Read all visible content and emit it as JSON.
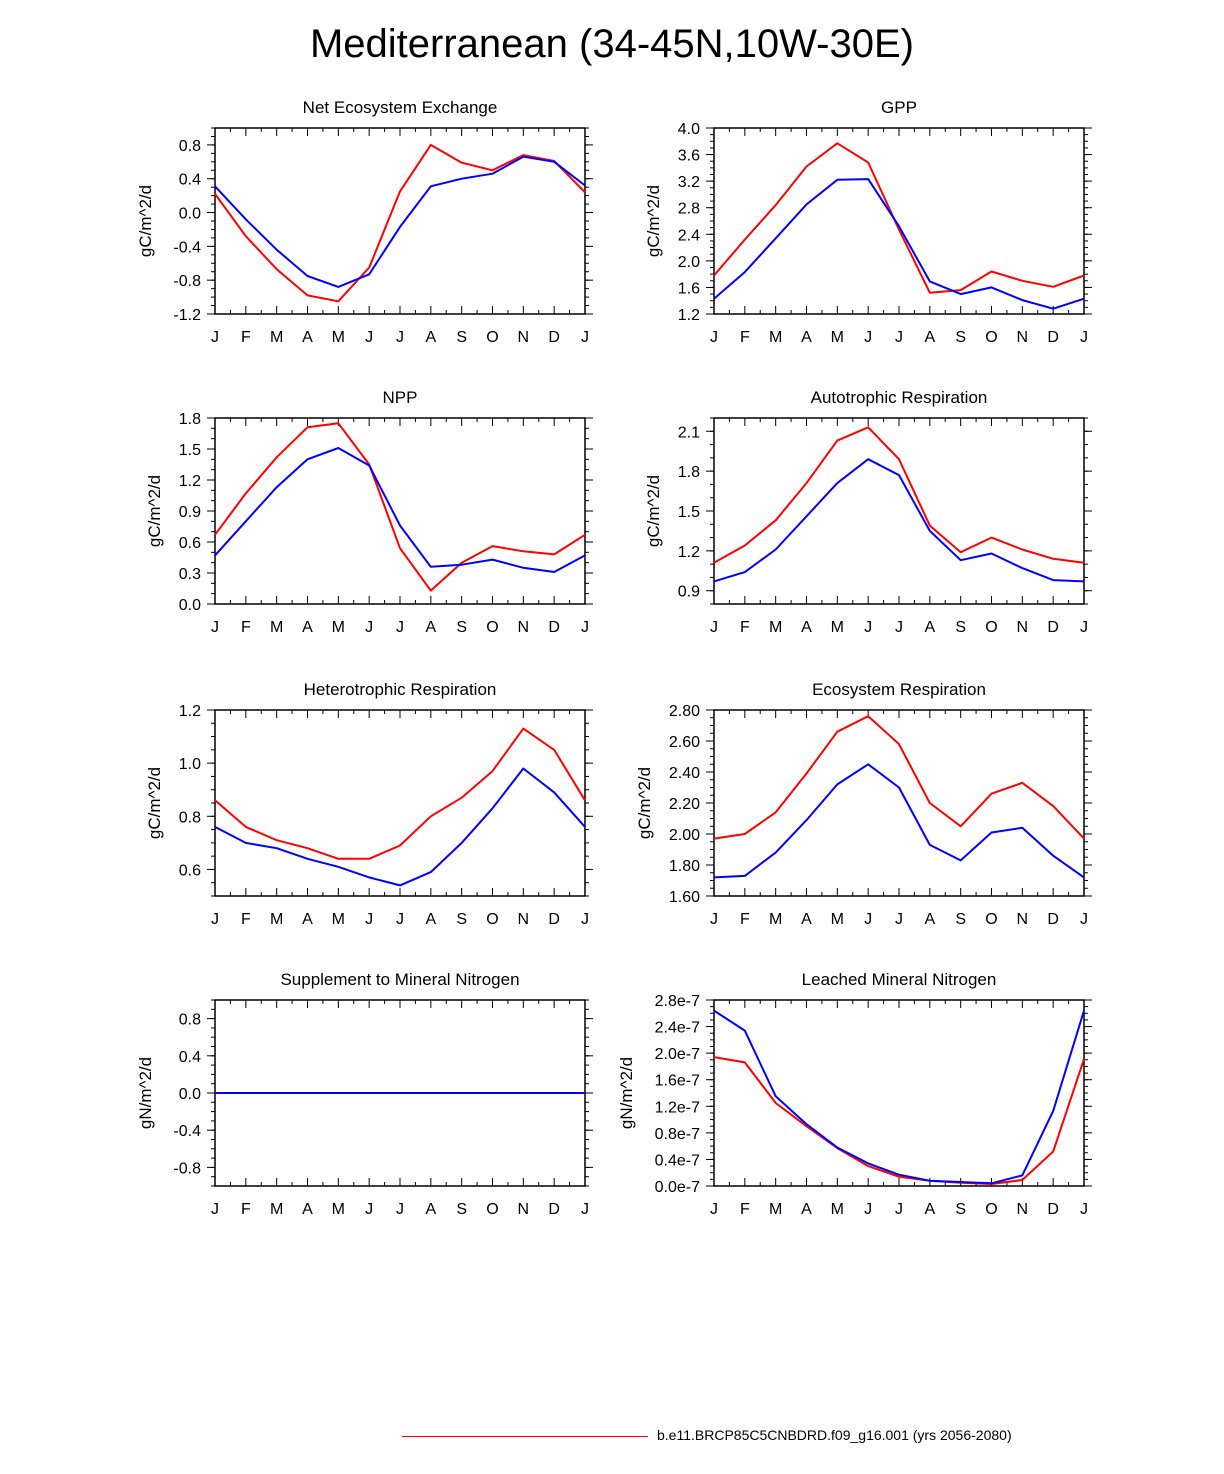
{
  "title": "Mediterranean (34-45N,10W-30E)",
  "legend": {
    "label": "b.e11.BRCP85C5CNBDRD.f09_g16.001 (yrs 2056-2080)",
    "color": "#ff0000"
  },
  "series_colors": {
    "case": "#ff0000",
    "control": "#0000ff"
  },
  "months": [
    "J",
    "F",
    "M",
    "A",
    "M",
    "J",
    "J",
    "A",
    "S",
    "O",
    "N",
    "D",
    "J"
  ],
  "chart_data": [
    {
      "type": "line",
      "title": "Net Ecosystem Exchange",
      "ylabel": "gC/m^2/d",
      "ylim": [
        -1.2,
        1.0
      ],
      "ticks": [
        -1.2,
        -0.8,
        -0.4,
        0.0,
        0.4,
        0.8
      ],
      "tick_labels": [
        "-1.2",
        "-0.8",
        "-0.4",
        "0.0",
        "0.4",
        "0.8"
      ],
      "minor_step": 0.1,
      "series": [
        {
          "name": "red",
          "values": [
            0.22,
            -0.28,
            -0.67,
            -0.98,
            -1.05,
            -0.65,
            0.25,
            0.8,
            0.59,
            0.5,
            0.68,
            0.61,
            0.24
          ]
        },
        {
          "name": "blue",
          "values": [
            0.31,
            -0.08,
            -0.44,
            -0.75,
            -0.88,
            -0.73,
            -0.17,
            0.31,
            0.4,
            0.46,
            0.66,
            0.6,
            0.32
          ]
        }
      ]
    },
    {
      "type": "line",
      "title": "GPP",
      "ylabel": "gC/m^2/d",
      "ylim": [
        1.2,
        4.0
      ],
      "ticks": [
        1.2,
        1.6,
        2.0,
        2.4,
        2.8,
        3.2,
        3.6,
        4.0
      ],
      "tick_labels": [
        "1.2",
        "1.6",
        "2.0",
        "2.4",
        "2.8",
        "3.2",
        "3.6",
        "4.0"
      ],
      "minor_step": 0.1,
      "series": [
        {
          "name": "red",
          "values": [
            1.78,
            2.32,
            2.84,
            3.42,
            3.77,
            3.48,
            2.47,
            1.52,
            1.56,
            1.84,
            1.7,
            1.61,
            1.78
          ]
        },
        {
          "name": "blue",
          "values": [
            1.43,
            1.83,
            2.34,
            2.85,
            3.22,
            3.23,
            2.52,
            1.69,
            1.5,
            1.6,
            1.41,
            1.28,
            1.43
          ]
        }
      ]
    },
    {
      "type": "line",
      "title": "NPP",
      "ylabel": "gC/m^2/d",
      "ylim": [
        0.0,
        1.8
      ],
      "ticks": [
        0.0,
        0.3,
        0.6,
        0.9,
        1.2,
        1.5,
        1.8
      ],
      "tick_labels": [
        "0.0",
        "0.3",
        "0.6",
        "0.9",
        "1.2",
        "1.5",
        "1.8"
      ],
      "minor_step": 0.1,
      "series": [
        {
          "name": "red",
          "values": [
            0.67,
            1.07,
            1.42,
            1.71,
            1.75,
            1.35,
            0.54,
            0.13,
            0.4,
            0.56,
            0.51,
            0.48,
            0.67
          ]
        },
        {
          "name": "blue",
          "values": [
            0.47,
            0.8,
            1.13,
            1.4,
            1.51,
            1.34,
            0.76,
            0.36,
            0.38,
            0.43,
            0.35,
            0.31,
            0.47
          ]
        }
      ]
    },
    {
      "type": "line",
      "title": "Autotrophic Respiration",
      "ylabel": "gC/m^2/d",
      "ylim": [
        0.8,
        2.2
      ],
      "ticks": [
        0.9,
        1.2,
        1.5,
        1.8,
        2.1
      ],
      "tick_labels": [
        "0.9",
        "1.2",
        "1.5",
        "1.8",
        "2.1"
      ],
      "minor_step": 0.1,
      "series": [
        {
          "name": "red",
          "values": [
            1.11,
            1.24,
            1.43,
            1.71,
            2.03,
            2.13,
            1.89,
            1.39,
            1.19,
            1.3,
            1.21,
            1.14,
            1.11
          ]
        },
        {
          "name": "blue",
          "values": [
            0.97,
            1.04,
            1.21,
            1.46,
            1.71,
            1.89,
            1.77,
            1.35,
            1.13,
            1.18,
            1.07,
            0.98,
            0.97
          ]
        }
      ]
    },
    {
      "type": "line",
      "title": "Heterotrophic Respiration",
      "ylabel": "gC/m^2/d",
      "ylim": [
        0.5,
        1.2
      ],
      "ticks": [
        0.6,
        0.8,
        1.0,
        1.2
      ],
      "tick_labels": [
        "0.6",
        "0.8",
        "1.0",
        "1.2"
      ],
      "minor_step": 0.05,
      "series": [
        {
          "name": "red",
          "values": [
            0.86,
            0.76,
            0.71,
            0.68,
            0.64,
            0.64,
            0.69,
            0.8,
            0.87,
            0.97,
            1.13,
            1.05,
            0.86
          ]
        },
        {
          "name": "blue",
          "values": [
            0.76,
            0.7,
            0.68,
            0.64,
            0.61,
            0.57,
            0.54,
            0.59,
            0.7,
            0.83,
            0.98,
            0.89,
            0.76
          ]
        }
      ]
    },
    {
      "type": "line",
      "title": "Ecosystem Respiration",
      "ylabel": "gC/m^2/d",
      "ylim": [
        1.6,
        2.8
      ],
      "ticks": [
        1.6,
        1.8,
        2.0,
        2.2,
        2.4,
        2.6,
        2.8
      ],
      "tick_labels": [
        "1.60",
        "1.80",
        "2.00",
        "2.20",
        "2.40",
        "2.60",
        "2.80"
      ],
      "minor_step": 0.05,
      "series": [
        {
          "name": "red",
          "values": [
            1.97,
            2.0,
            2.14,
            2.39,
            2.66,
            2.76,
            2.58,
            2.2,
            2.05,
            2.26,
            2.33,
            2.18,
            1.97
          ]
        },
        {
          "name": "blue",
          "values": [
            1.72,
            1.73,
            1.88,
            2.09,
            2.32,
            2.45,
            2.3,
            1.93,
            1.83,
            2.01,
            2.04,
            1.86,
            1.72
          ]
        }
      ]
    },
    {
      "type": "line",
      "title": "Supplement to Mineral Nitrogen",
      "ylabel": "gN/m^2/d",
      "ylim": [
        -1.0,
        1.0
      ],
      "ticks": [
        -0.8,
        -0.4,
        0.0,
        0.4,
        0.8
      ],
      "tick_labels": [
        "-0.8",
        "-0.4",
        "0.0",
        "0.4",
        "0.8"
      ],
      "minor_step": 0.1,
      "series": [
        {
          "name": "red",
          "values": [
            0,
            0,
            0,
            0,
            0,
            0,
            0,
            0,
            0,
            0,
            0,
            0,
            0
          ]
        },
        {
          "name": "blue",
          "values": [
            0,
            0,
            0,
            0,
            0,
            0,
            0,
            0,
            0,
            0,
            0,
            0,
            0
          ]
        }
      ]
    },
    {
      "type": "line",
      "title": "Leached Mineral Nitrogen",
      "ylabel": "gN/m^2/d",
      "ylim": [
        0.0,
        2.8e-07
      ],
      "ticks": [
        0.0,
        4e-08,
        8e-08,
        1.2e-07,
        1.6e-07,
        2e-07,
        2.4e-07,
        2.8e-07
      ],
      "tick_labels": [
        "0.0e-7",
        "0.4e-7",
        "0.8e-7",
        "1.2e-7",
        "1.6e-7",
        "2.0e-7",
        "2.4e-7",
        "2.8e-7"
      ],
      "minor_step": 1e-08,
      "series": [
        {
          "name": "red",
          "values": [
            1.94e-07,
            1.86e-07,
            1.25e-07,
            9e-08,
            5.7e-08,
            3e-08,
            1.4e-08,
            8e-09,
            5e-09,
            3e-09,
            9e-09,
            5.2e-08,
            1.91e-07
          ]
        },
        {
          "name": "blue",
          "values": [
            2.64e-07,
            2.34e-07,
            1.35e-07,
            9.3e-08,
            5.8e-08,
            3.4e-08,
            1.7e-08,
            8e-09,
            6e-09,
            4e-09,
            1.6e-08,
            1.13e-07,
            2.64e-07
          ]
        }
      ]
    }
  ]
}
